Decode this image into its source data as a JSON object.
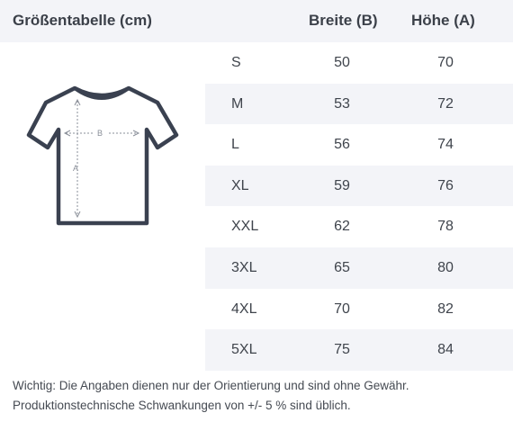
{
  "header": {
    "title": "Größentabelle (cm)",
    "col_b": "Breite (B)",
    "col_a": "Höhe (A)"
  },
  "diagram": {
    "label_b": "B",
    "label_a": "A",
    "stroke_color": "#3a4150"
  },
  "rows": [
    {
      "size": "S",
      "b": "50",
      "a": "70"
    },
    {
      "size": "M",
      "b": "53",
      "a": "72"
    },
    {
      "size": "L",
      "b": "56",
      "a": "74"
    },
    {
      "size": "XL",
      "b": "59",
      "a": "76"
    },
    {
      "size": "XXL",
      "b": "62",
      "a": "78"
    },
    {
      "size": "3XL",
      "b": "65",
      "a": "80"
    },
    {
      "size": "4XL",
      "b": "70",
      "a": "82"
    },
    {
      "size": "5XL",
      "b": "75",
      "a": "84"
    }
  ],
  "note": {
    "line1": "Wichtig: Die Angaben dienen nur der Orientierung und sind ohne Gewähr.",
    "line2": "Produktionstechnische Schwankungen von +/- 5 % sind üblich."
  },
  "colors": {
    "header_bg": "#f3f4f8",
    "stripe_bg": "#f3f4f8",
    "text": "#3f444c"
  }
}
